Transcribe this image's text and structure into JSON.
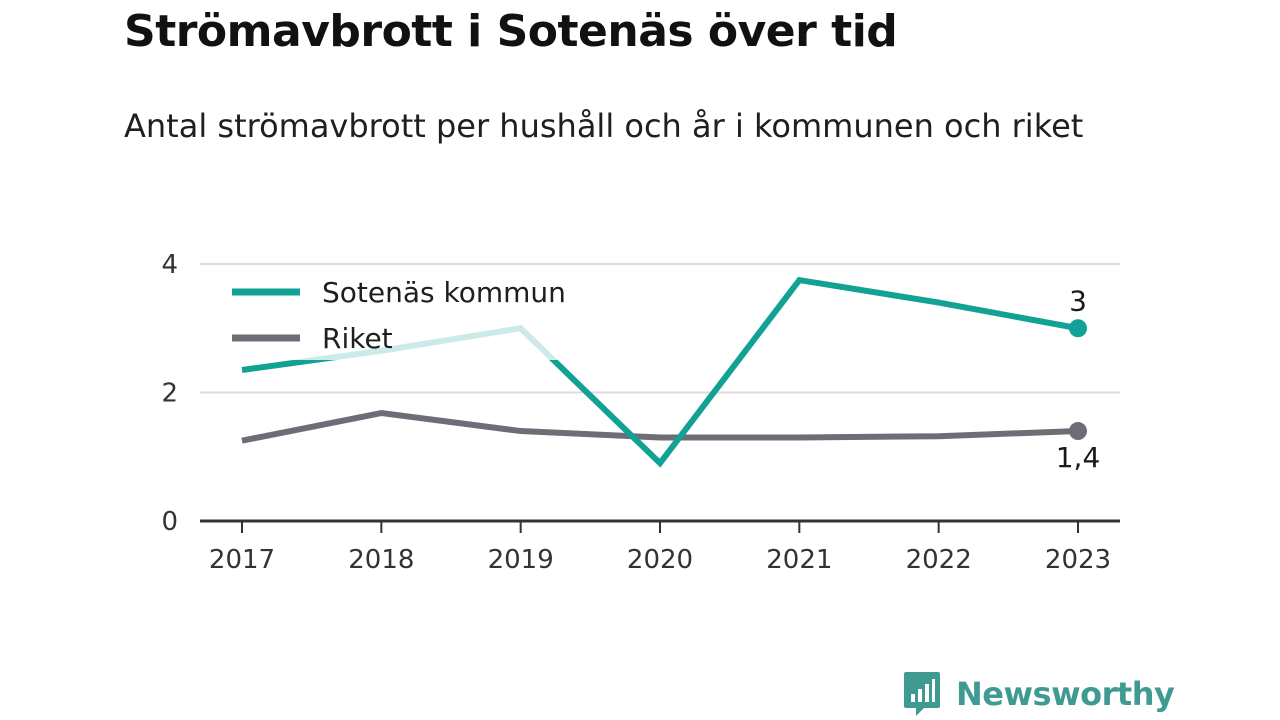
{
  "title": "Strömavbrott i Sotenäs över tid",
  "subtitle": "Antal strömavbrott per hushåll och år i kommunen och riket",
  "brand": {
    "name": "Newsworthy",
    "icon": "newsworthy-logo-icon",
    "color": "#3f9b91"
  },
  "chart_data": {
    "type": "line",
    "title": "Strömavbrott i Sotenäs över tid",
    "subtitle": "Antal strömavbrott per hushåll och år i kommunen och riket",
    "xlabel": "",
    "ylabel": "",
    "categories": [
      "2017",
      "2018",
      "2019",
      "2020",
      "2021",
      "2022",
      "2023"
    ],
    "ylim": [
      0,
      4
    ],
    "yticks": [
      "0",
      "2",
      "4"
    ],
    "grid": true,
    "legend_position": "top-left",
    "series": [
      {
        "name": "Sotenäs kommun",
        "color": "#12a195",
        "values": [
          2.35,
          2.65,
          3.0,
          0.9,
          3.75,
          3.4,
          3.0
        ],
        "end_label": "3"
      },
      {
        "name": "Riket",
        "color": "#6e6d75",
        "values": [
          1.25,
          1.68,
          1.4,
          1.3,
          1.3,
          1.32,
          1.4
        ],
        "end_label": "1,4"
      }
    ]
  }
}
